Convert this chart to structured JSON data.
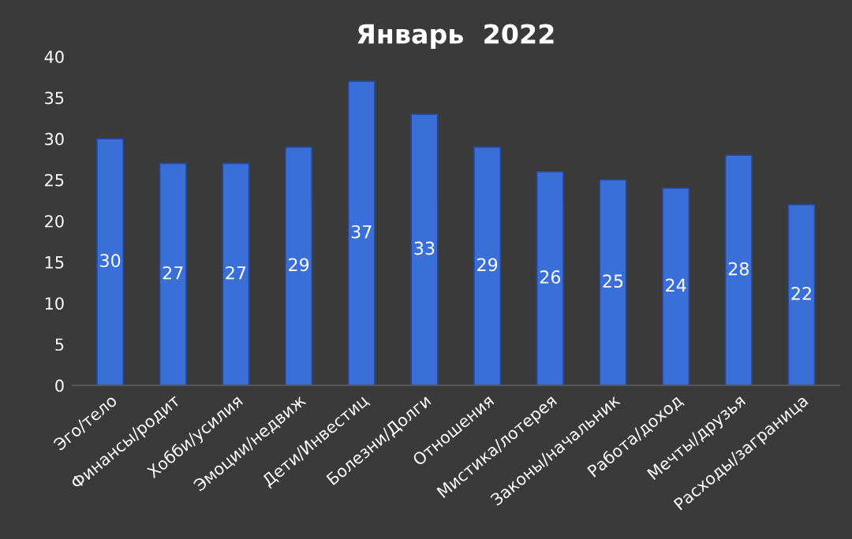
{
  "chart_data": {
    "type": "bar",
    "title": "Январь  2022",
    "categories": [
      "Эго/тело",
      "Финансы/родит",
      "Хобби/усилия",
      "Эмоции/недвиж",
      "Дети/Инвестиц",
      "Болезни/Долги",
      "Отношения",
      "Мистика/лотерея",
      "Законы/начальник",
      "Работа/доход",
      "Мечты/друзья",
      "Расходы/заграница"
    ],
    "values": [
      30,
      27,
      27,
      29,
      37,
      33,
      29,
      26,
      25,
      24,
      28,
      22
    ],
    "color": "#3a6fd8",
    "data_labels": true,
    "ylim": [
      0,
      40
    ],
    "yticks": [
      0,
      5,
      10,
      15,
      20,
      25,
      30,
      35,
      40
    ],
    "grid": false
  }
}
